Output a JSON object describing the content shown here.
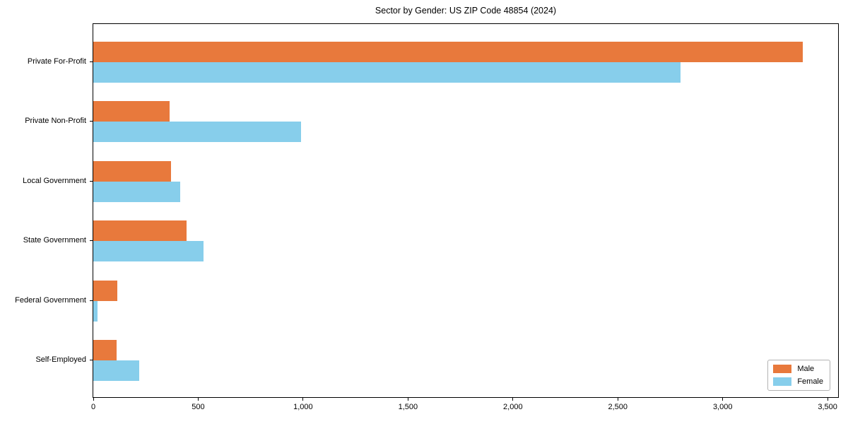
{
  "chart_data": {
    "type": "bar",
    "orientation": "horizontal",
    "title": "Sector by Gender: US ZIP Code 48854 (2024)",
    "categories": [
      "Private For-Profit",
      "Private Non-Profit",
      "Local Government",
      "State Government",
      "Federal Government",
      "Self-Employed"
    ],
    "series": [
      {
        "name": "Male",
        "color": "#E8793C",
        "values": [
          3380,
          365,
          372,
          445,
          113,
          112
        ]
      },
      {
        "name": "Female",
        "color": "#87CEEB",
        "values": [
          2800,
          990,
          413,
          525,
          21,
          220
        ]
      }
    ],
    "xlabel": "",
    "ylabel": "",
    "xlim": [
      0,
      3550
    ],
    "x_ticks": [
      0,
      500,
      1000,
      1500,
      2000,
      2500,
      3000,
      3500
    ],
    "x_tick_labels": [
      "0",
      "500",
      "1,000",
      "1,500",
      "2,000",
      "2,500",
      "3,000",
      "3,500"
    ],
    "grid": false,
    "legend": {
      "position": "lower-right",
      "entries": [
        "Male",
        "Female"
      ]
    },
    "colors": {
      "background": "#ffffff",
      "axis": "#000000",
      "text": "#000000",
      "legend_border": "#b3b3b3"
    }
  }
}
